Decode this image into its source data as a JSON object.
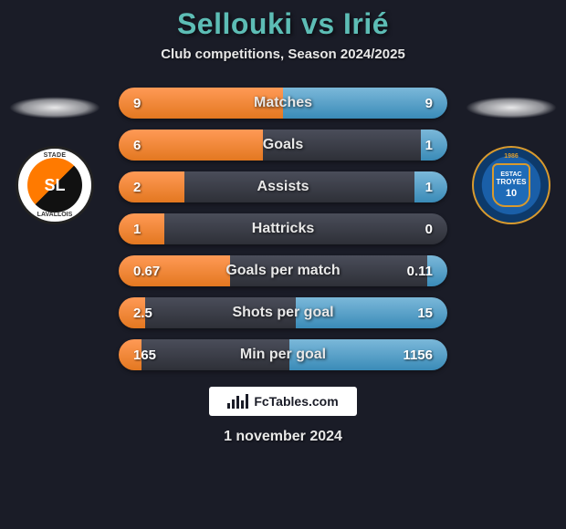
{
  "title": {
    "player1": "Sellouki",
    "vs": "vs",
    "player2": "Irié",
    "color": "#5dbdb5",
    "fontsize": 32
  },
  "subtitle": "Club competitions, Season 2024/2025",
  "colors": {
    "background": "#1a1c27",
    "bar_left_fill": "#e37820",
    "bar_right_fill": "#3a8bb8",
    "bar_empty": "#2e3038",
    "text": "#e8e8e8"
  },
  "badges": {
    "left": {
      "team_top": "STADE",
      "team_main": "LAVALLOIS",
      "logo_text": "SL",
      "bg": "#ffffff",
      "inner_colors": [
        "#ff7a00",
        "#111111"
      ]
    },
    "right": {
      "year": "1986",
      "shield_text_top": "ESTAC",
      "shield_text_main": "TROYES",
      "number": "10",
      "bg": "#1a5fa8",
      "accent": "#d89a2e"
    }
  },
  "bar_label_fontsize": 16,
  "bar_value_fontsize": 15,
  "bars": [
    {
      "label": "Matches",
      "left": "9",
      "right": "9",
      "left_pct": 50,
      "right_pct": 50
    },
    {
      "label": "Goals",
      "left": "6",
      "right": "1",
      "left_pct": 44,
      "right_pct": 8
    },
    {
      "label": "Assists",
      "left": "2",
      "right": "1",
      "left_pct": 20,
      "right_pct": 10
    },
    {
      "label": "Hattricks",
      "left": "1",
      "right": "0",
      "left_pct": 14,
      "right_pct": 0
    },
    {
      "label": "Goals per match",
      "left": "0.67",
      "right": "0.11",
      "left_pct": 34,
      "right_pct": 6
    },
    {
      "label": "Shots per goal",
      "left": "2.5",
      "right": "15",
      "left_pct": 8,
      "right_pct": 46
    },
    {
      "label": "Min per goal",
      "left": "165",
      "right": "1156",
      "left_pct": 7,
      "right_pct": 48
    }
  ],
  "footer": {
    "brand": "FcTables.com",
    "date": "1 november 2024"
  }
}
